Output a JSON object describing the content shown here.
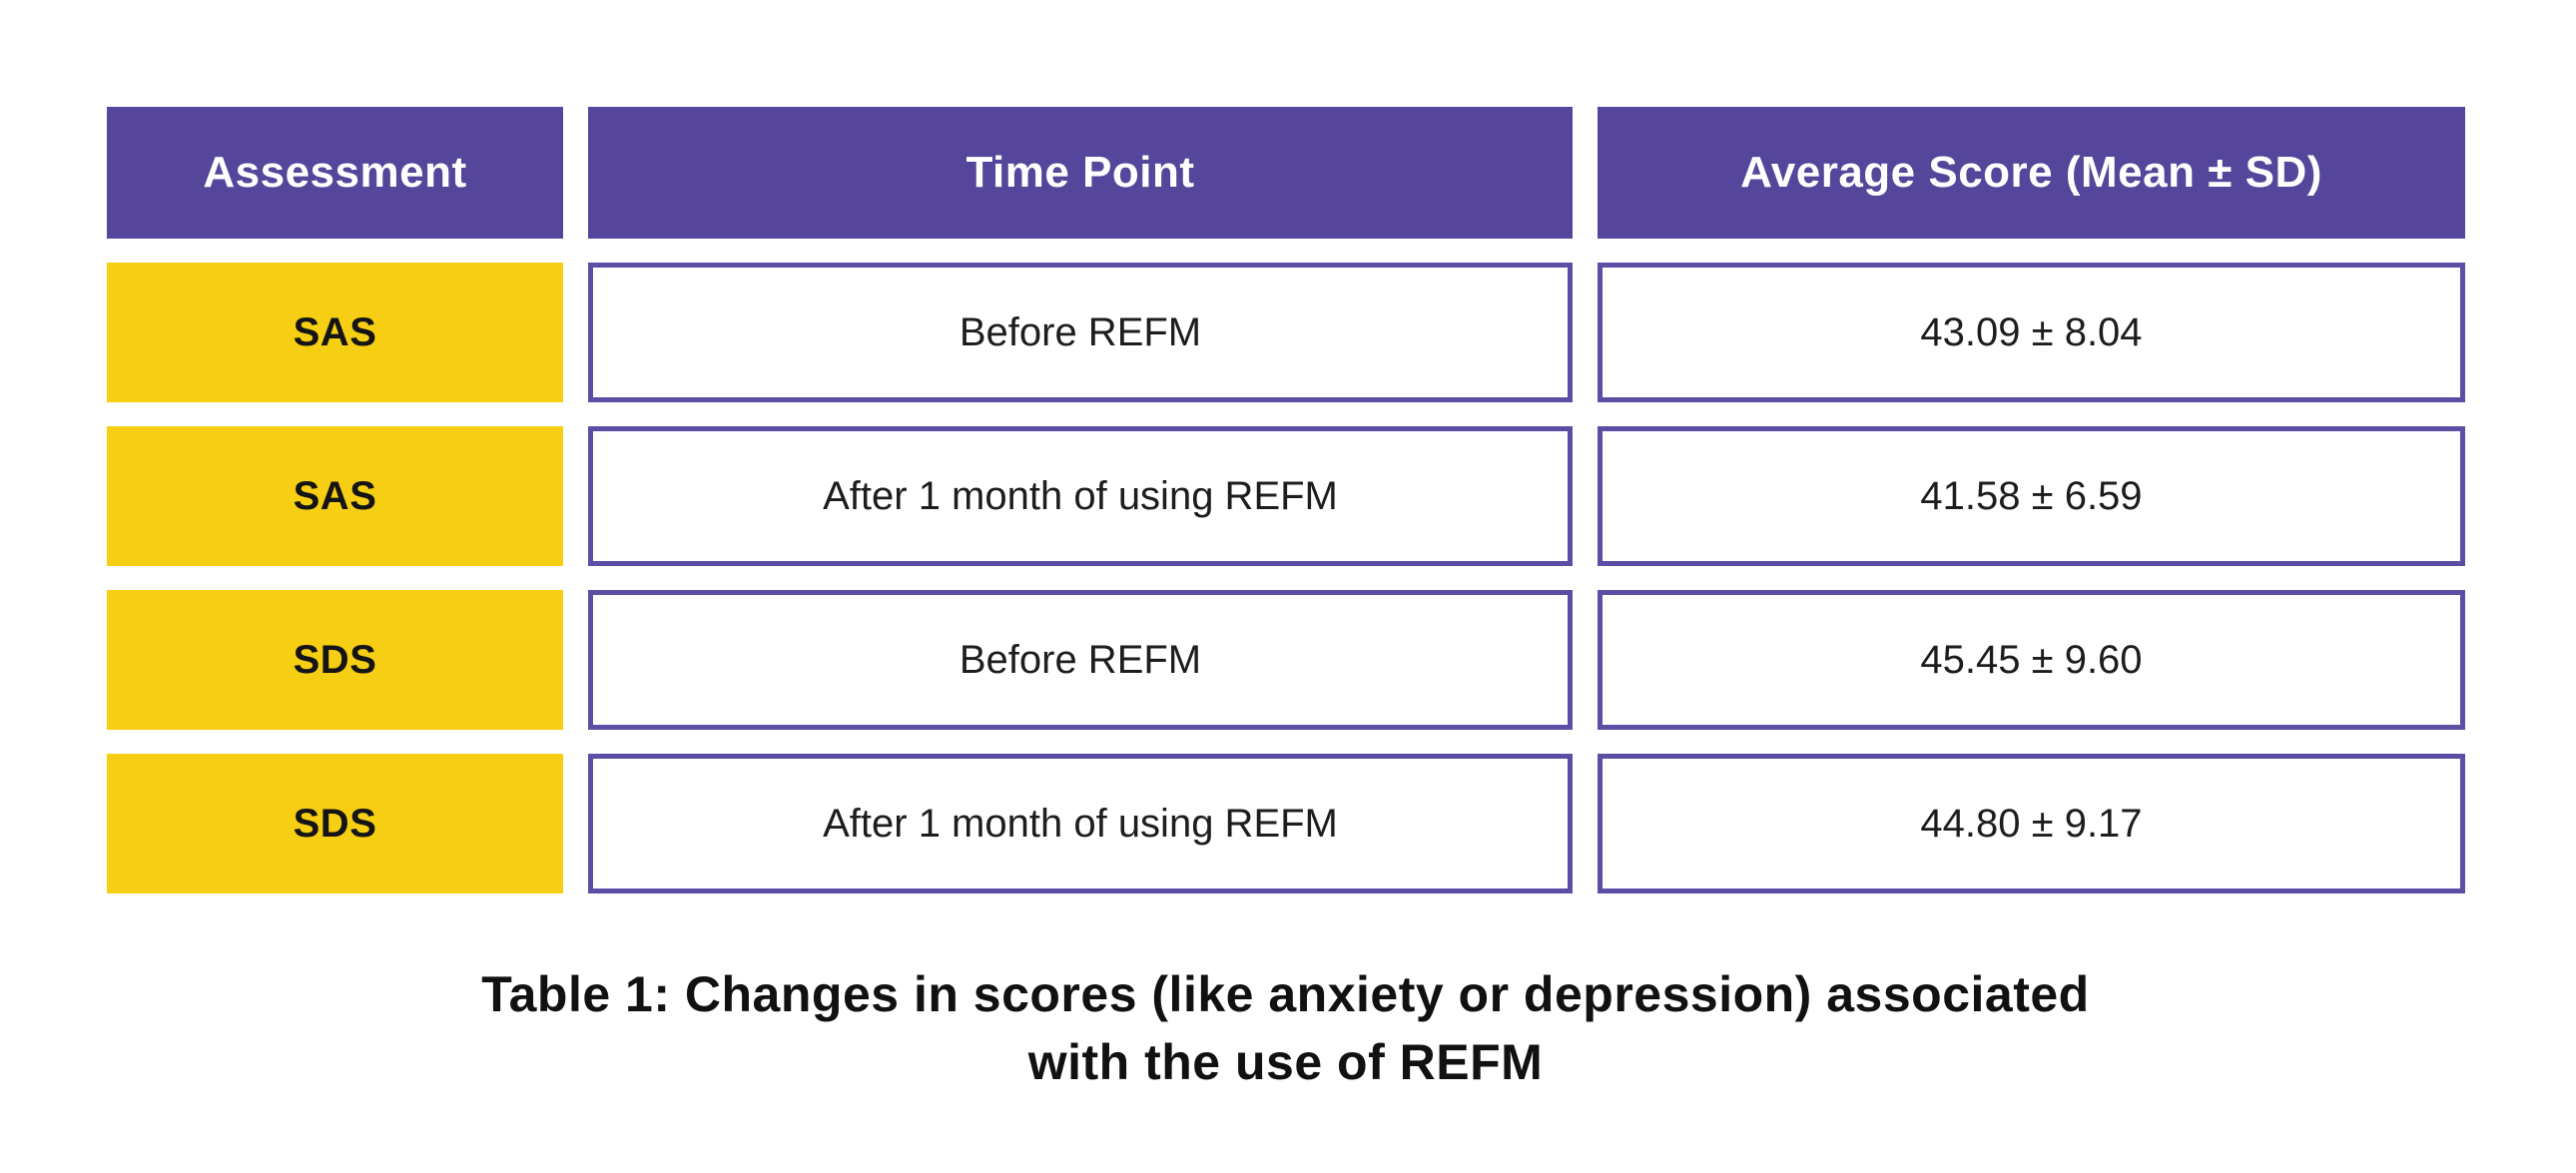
{
  "chart_data": {
    "type": "table",
    "title": "Table 1: Changes in scores (like anxiety or depression) associated with the use of REFM",
    "columns": [
      "Assessment",
      "Time Point",
      "Average Score (Mean ± SD)"
    ],
    "rows": [
      [
        "SAS",
        "Before REFM",
        "43.09 ± 8.04"
      ],
      [
        "SAS",
        "After 1 month of using REFM",
        "41.58 ± 6.59"
      ],
      [
        "SDS",
        "Before REFM",
        "45.45 ± 9.60"
      ],
      [
        "SDS",
        "After 1 month of using REFM",
        "44.80 ± 9.17"
      ]
    ],
    "values": [
      {
        "assessment": "SAS",
        "time_point": "Before REFM",
        "mean": 43.09,
        "sd": 8.04
      },
      {
        "assessment": "SAS",
        "time_point": "After 1 month of using REFM",
        "mean": 41.58,
        "sd": 6.59
      },
      {
        "assessment": "SDS",
        "time_point": "Before REFM",
        "mean": 45.45,
        "sd": 9.6
      },
      {
        "assessment": "SDS",
        "time_point": "After 1 month of using REFM",
        "mean": 44.8,
        "sd": 9.17
      }
    ],
    "legend_position": "none",
    "grid": false
  },
  "caption": {
    "line1": "Table 1: Changes in scores (like anxiety or depression) associated",
    "line2": "with the use of REFM"
  },
  "colors": {
    "header_bg": "#55469B",
    "header_text": "#FFFFFF",
    "assessment_bg": "#F6CE13",
    "cell_border": "#5B4EA5",
    "body_text": "#1D1D1F",
    "page_bg": "#FFFFFF"
  }
}
